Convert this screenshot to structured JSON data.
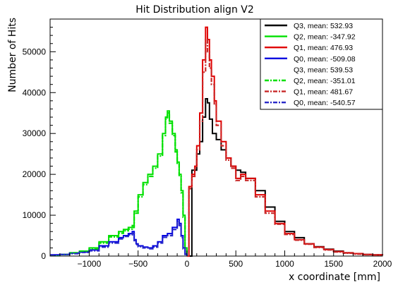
{
  "chart_data": {
    "type": "line",
    "title": "Hit Distribution align V2",
    "xlabel": "x coordinate [mm]",
    "ylabel": "Number of Hits",
    "xlim": [
      -1400,
      2000
    ],
    "ylim": [
      0,
      58000
    ],
    "x_ticks": [
      -1000,
      -500,
      0,
      500,
      1000,
      1500,
      2000
    ],
    "y_ticks": [
      0,
      10000,
      20000,
      30000,
      40000,
      50000
    ],
    "grid": false,
    "legend_position": "top-right",
    "series": [
      {
        "name": "Q3, mean: 532.93",
        "color": "#000000",
        "style": "solid",
        "x": [
          0,
          50,
          100,
          130,
          160,
          190,
          210,
          230,
          260,
          300,
          350,
          400,
          450,
          500,
          550,
          600,
          700,
          800,
          900,
          1000,
          1100,
          1200,
          1300,
          1400,
          1500,
          1600,
          1700,
          1800,
          1900,
          2000
        ],
        "y": [
          0,
          21000,
          25000,
          28000,
          34000,
          38500,
          37500,
          33500,
          30000,
          28500,
          26000,
          24000,
          22000,
          21000,
          20500,
          19000,
          16000,
          12000,
          8500,
          6000,
          4500,
          3000,
          2300,
          1700,
          1200,
          800,
          600,
          400,
          300,
          200
        ]
      },
      {
        "name": "Q2, mean: -347.92",
        "color": "#00e000",
        "style": "solid",
        "x": [
          -1400,
          -1300,
          -1200,
          -1100,
          -1000,
          -900,
          -800,
          -700,
          -650,
          -600,
          -560,
          -540,
          -500,
          -450,
          -400,
          -350,
          -300,
          -250,
          -220,
          -200,
          -180,
          -150,
          -120,
          -100,
          -80,
          -60,
          -40,
          -20,
          0
        ],
        "y": [
          200,
          400,
          800,
          1200,
          2000,
          3500,
          5000,
          6000,
          6500,
          7000,
          7500,
          11000,
          15000,
          18000,
          20000,
          22000,
          25000,
          30000,
          34000,
          35500,
          33000,
          30000,
          26000,
          23000,
          20000,
          16000,
          10000,
          2000,
          0
        ]
      },
      {
        "name": "Q1, mean: 476.93",
        "color": "#e00000",
        "style": "solid",
        "x": [
          0,
          20,
          50,
          80,
          100,
          130,
          160,
          190,
          210,
          230,
          250,
          280,
          300,
          350,
          400,
          450,
          500,
          550,
          600,
          700,
          800,
          900,
          1000,
          1100,
          1200,
          1300,
          1400,
          1500,
          1600,
          1700,
          1800,
          1900,
          2000
        ],
        "y": [
          0,
          17000,
          20000,
          22000,
          27000,
          35000,
          48000,
          56000,
          53000,
          48000,
          44000,
          38000,
          33000,
          28000,
          24000,
          22000,
          19000,
          20000,
          19000,
          15000,
          11000,
          8000,
          5500,
          4000,
          3000,
          2200,
          1600,
          1100,
          800,
          600,
          400,
          300,
          200
        ]
      },
      {
        "name": "Q0, mean: -509.08",
        "color": "#0000e0",
        "style": "solid",
        "x": [
          -1400,
          -1300,
          -1200,
          -1100,
          -1000,
          -900,
          -800,
          -700,
          -650,
          -600,
          -560,
          -540,
          -520,
          -500,
          -450,
          -400,
          -350,
          -300,
          -250,
          -200,
          -150,
          -100,
          -80,
          -60,
          -40,
          -20,
          0
        ],
        "y": [
          300,
          400,
          700,
          1000,
          1500,
          2500,
          3500,
          4500,
          5000,
          5500,
          6000,
          4000,
          3000,
          2500,
          2200,
          2000,
          2500,
          3500,
          5000,
          5500,
          7000,
          9000,
          8000,
          5000,
          2000,
          500,
          0
        ]
      },
      {
        "name": "Q3, mean: 539.53",
        "color": "#000000",
        "style": "none",
        "x": [],
        "y": []
      },
      {
        "name": "Q2, mean: -351.01",
        "color": "#00e000",
        "style": "dashdot",
        "x": [
          -1400,
          -1300,
          -1200,
          -1100,
          -1000,
          -900,
          -800,
          -700,
          -650,
          -600,
          -560,
          -540,
          -500,
          -450,
          -400,
          -350,
          -300,
          -250,
          -220,
          -200,
          -180,
          -150,
          -120,
          -100,
          -80,
          -60,
          -40,
          -20,
          0
        ],
        "y": [
          200,
          400,
          800,
          1200,
          1800,
          3200,
          4700,
          5600,
          6200,
          6600,
          7000,
          10500,
          14500,
          17500,
          19500,
          21500,
          24500,
          29500,
          33500,
          35000,
          32500,
          29500,
          25500,
          22500,
          19500,
          15500,
          9500,
          1800,
          0
        ]
      },
      {
        "name": "Q1, mean: 481.67",
        "color": "#c82828",
        "style": "dashdot",
        "x": [
          0,
          20,
          50,
          80,
          100,
          130,
          160,
          190,
          210,
          230,
          250,
          280,
          300,
          350,
          400,
          450,
          500,
          550,
          600,
          700,
          800,
          900,
          1000,
          1100,
          1200,
          1300,
          1400,
          1500,
          1600,
          1700,
          1800,
          1900,
          2000
        ],
        "y": [
          0,
          16500,
          19500,
          21500,
          26000,
          33000,
          45000,
          53000,
          50000,
          46000,
          42000,
          37000,
          32000,
          27000,
          23500,
          21500,
          18500,
          19500,
          18500,
          14500,
          10500,
          7800,
          5300,
          3900,
          2900,
          2100,
          1500,
          1000,
          700,
          500,
          350,
          250,
          200
        ]
      },
      {
        "name": "Q0, mean: -540.57",
        "color": "#2828c8",
        "style": "dashdot",
        "x": [
          -1400,
          -1300,
          -1200,
          -1100,
          -1000,
          -900,
          -800,
          -700,
          -650,
          -600,
          -560,
          -540,
          -520,
          -500,
          -450,
          -400,
          -350,
          -300,
          -250,
          -200,
          -150,
          -100,
          -80,
          -60,
          -40,
          -20,
          0
        ],
        "y": [
          300,
          400,
          600,
          900,
          1300,
          2200,
          3200,
          4200,
          4800,
          5200,
          5500,
          3800,
          2800,
          2300,
          2000,
          1800,
          2200,
          3200,
          4600,
          5000,
          6500,
          8500,
          7500,
          4500,
          1800,
          400,
          0
        ]
      }
    ]
  }
}
